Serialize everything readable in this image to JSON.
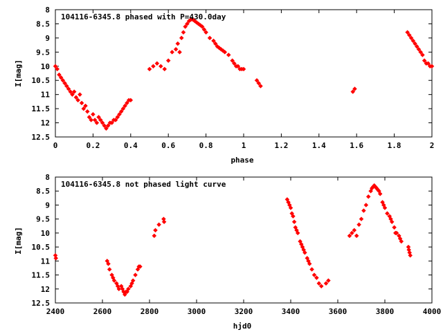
{
  "chart_data": [
    {
      "type": "scatter",
      "title": "104116-6345.8 phased with P=430.0day",
      "xlabel": "phase",
      "ylabel": "I[mag]",
      "xlim": [
        0,
        2
      ],
      "ylim": [
        12.5,
        8
      ],
      "y_reversed": true,
      "grid": false,
      "marker_color": "#ff0000",
      "x_ticks": [
        "0",
        "0.2",
        "0.4",
        "0.6",
        "0.8",
        "1",
        "1.2",
        "1.4",
        "1.6",
        "1.8",
        "2"
      ],
      "y_ticks": [
        "8",
        "8.5",
        "9",
        "9.5",
        "10",
        "10.5",
        "11",
        "11.5",
        "12",
        "12.5"
      ],
      "series": [
        {
          "x": [
            0.0,
            0.01,
            0.02,
            0.03,
            0.04,
            0.05,
            0.06,
            0.07,
            0.08,
            0.09,
            0.1,
            0.11,
            0.12,
            0.13,
            0.14,
            0.15,
            0.16,
            0.17,
            0.18,
            0.19,
            0.2,
            0.21,
            0.22,
            0.23,
            0.24,
            0.25,
            0.26,
            0.27,
            0.28,
            0.29,
            0.3,
            0.31,
            0.32,
            0.33,
            0.34,
            0.35,
            0.36,
            0.37,
            0.38,
            0.39,
            0.4,
            0.5,
            0.52,
            0.54,
            0.56,
            0.58,
            0.6,
            0.62,
            0.64,
            0.65,
            0.66,
            0.67,
            0.68,
            0.69,
            0.7,
            0.71,
            0.72,
            0.73,
            0.74,
            0.75,
            0.76,
            0.77,
            0.78,
            0.79,
            0.8,
            0.82,
            0.84,
            0.85,
            0.86,
            0.87,
            0.88,
            0.89,
            0.9,
            0.92,
            0.94,
            0.95,
            0.96,
            0.97,
            0.98,
            0.99,
            1.0,
            1.07,
            1.08,
            1.09,
            1.58,
            1.59,
            1.87,
            1.88,
            1.89,
            1.9,
            1.91,
            1.92,
            1.93,
            1.94,
            1.95,
            1.96,
            1.97,
            1.98,
            1.99,
            2.0
          ],
          "y": [
            10.0,
            10.1,
            10.3,
            10.4,
            10.5,
            10.6,
            10.7,
            10.8,
            10.9,
            11.0,
            10.9,
            11.1,
            11.2,
            11.0,
            11.3,
            11.5,
            11.4,
            11.6,
            11.8,
            11.9,
            11.7,
            11.9,
            12.0,
            11.8,
            11.9,
            12.0,
            12.1,
            12.2,
            12.1,
            12.0,
            12.0,
            11.9,
            11.9,
            11.8,
            11.7,
            11.6,
            11.5,
            11.4,
            11.3,
            11.2,
            11.2,
            10.1,
            10.0,
            9.9,
            10.0,
            10.1,
            9.8,
            9.5,
            9.4,
            9.2,
            9.5,
            9.0,
            8.8,
            8.6,
            8.5,
            8.4,
            8.35,
            8.35,
            8.4,
            8.45,
            8.5,
            8.55,
            8.6,
            8.7,
            8.8,
            9.0,
            9.1,
            9.2,
            9.3,
            9.35,
            9.4,
            9.45,
            9.5,
            9.6,
            9.8,
            9.9,
            10.0,
            10.0,
            10.1,
            10.1,
            10.1,
            10.5,
            10.6,
            10.7,
            10.9,
            10.8,
            8.8,
            8.9,
            9.0,
            9.1,
            9.2,
            9.3,
            9.4,
            9.5,
            9.6,
            9.8,
            9.9,
            9.9,
            10.0,
            10.0
          ]
        }
      ]
    },
    {
      "type": "scatter",
      "title": "104116-6345.8 not phased light curve",
      "xlabel": "hjd0",
      "ylabel": "I[mag]",
      "xlim": [
        2400,
        4000
      ],
      "ylim": [
        12.5,
        8
      ],
      "y_reversed": true,
      "grid": false,
      "marker_color": "#ff0000",
      "x_ticks": [
        "2400",
        "2600",
        "2800",
        "3000",
        "3200",
        "3400",
        "3600",
        "3800",
        "4000"
      ],
      "y_ticks": [
        "8",
        "8.5",
        "9",
        "9.5",
        "10",
        "10.5",
        "11",
        "11.5",
        "12",
        "12.5"
      ],
      "series": [
        {
          "x": [
            2400,
            2402,
            2620,
            2625,
            2630,
            2640,
            2645,
            2650,
            2660,
            2665,
            2670,
            2680,
            2685,
            2690,
            2695,
            2700,
            2705,
            2710,
            2720,
            2725,
            2730,
            2740,
            2750,
            2755,
            2760,
            2820,
            2825,
            2840,
            2860,
            2862,
            3385,
            3390,
            3395,
            3400,
            3405,
            3410,
            3415,
            3420,
            3425,
            3430,
            3440,
            3445,
            3450,
            3455,
            3460,
            3470,
            3475,
            3480,
            3490,
            3500,
            3510,
            3520,
            3530,
            3550,
            3560,
            3650,
            3660,
            3670,
            3680,
            3690,
            3700,
            3710,
            3720,
            3730,
            3740,
            3745,
            3750,
            3755,
            3760,
            3765,
            3770,
            3775,
            3780,
            3790,
            3795,
            3800,
            3810,
            3820,
            3825,
            3830,
            3840,
            3845,
            3850,
            3860,
            3865,
            3870,
            3900,
            3902,
            3905,
            3908
          ],
          "y": [
            10.8,
            10.9,
            11.0,
            11.1,
            11.3,
            11.5,
            11.6,
            11.7,
            11.8,
            11.9,
            12.0,
            11.9,
            12.0,
            12.1,
            12.2,
            12.1,
            12.1,
            12.0,
            11.9,
            11.8,
            11.7,
            11.5,
            11.3,
            11.2,
            11.2,
            10.1,
            9.9,
            9.7,
            9.5,
            9.6,
            8.8,
            8.9,
            9.0,
            9.1,
            9.3,
            9.4,
            9.6,
            9.8,
            9.9,
            10.0,
            10.3,
            10.4,
            10.5,
            10.6,
            10.7,
            10.9,
            11.0,
            11.1,
            11.3,
            11.5,
            11.6,
            11.8,
            11.9,
            11.8,
            11.7,
            10.1,
            10.0,
            9.9,
            10.1,
            9.7,
            9.5,
            9.2,
            9.0,
            8.7,
            8.5,
            8.4,
            8.35,
            8.3,
            8.35,
            8.4,
            8.45,
            8.5,
            8.6,
            8.9,
            9.0,
            9.1,
            9.3,
            9.4,
            9.5,
            9.6,
            9.8,
            10.0,
            10.0,
            10.1,
            10.2,
            10.3,
            10.5,
            10.6,
            10.7,
            10.8
          ]
        }
      ]
    }
  ]
}
